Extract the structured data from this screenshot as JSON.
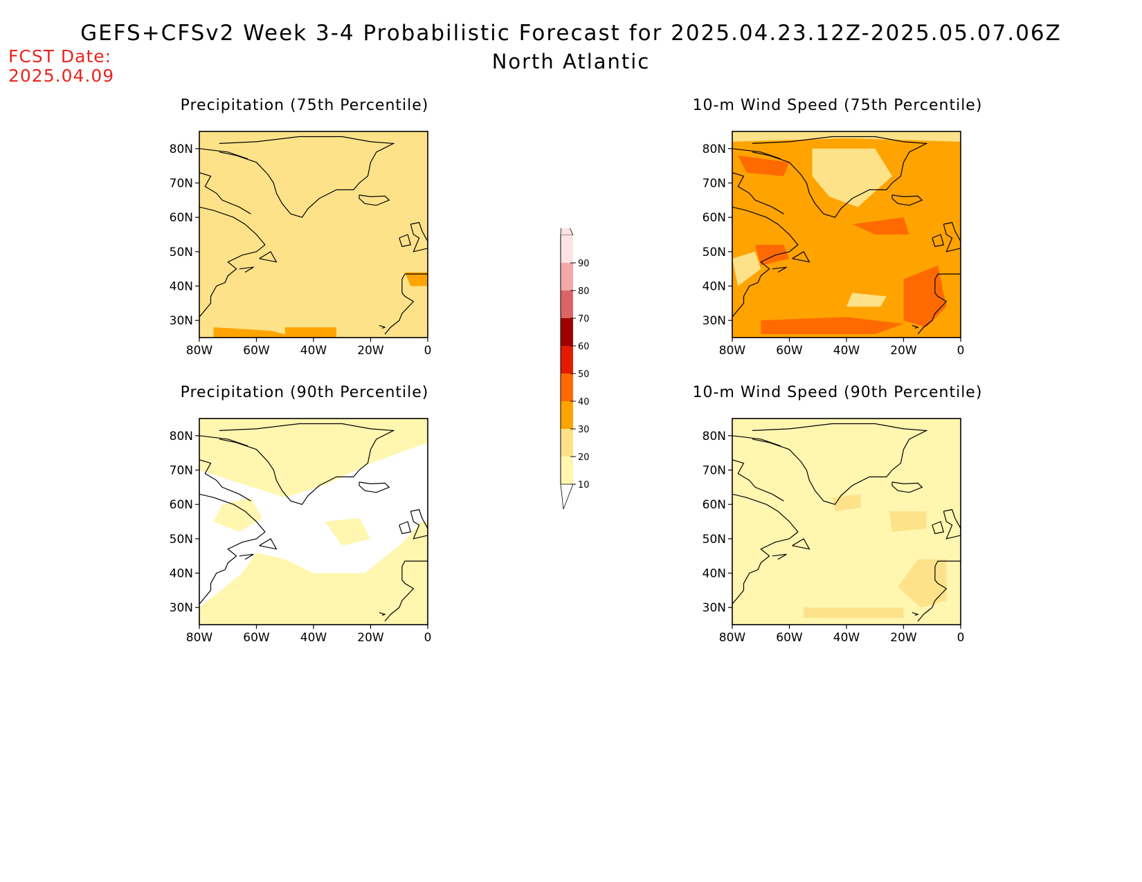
{
  "header": {
    "title": "GEFS+CFSv2 Week 3-4 Probabilistic Forecast for 2025.04.23.12Z-2025.05.07.06Z",
    "subtitle": "North Atlantic",
    "fcst_label": "FCST Date:",
    "fcst_date": "2025.04.09"
  },
  "axes": {
    "lat_labels": [
      "80N",
      "70N",
      "60N",
      "50N",
      "40N",
      "30N"
    ],
    "lon_labels": [
      "80W",
      "60W",
      "40W",
      "20W",
      "0"
    ]
  },
  "panels": [
    {
      "id": "precip-75",
      "title": "Precipitation (75th Percentile)",
      "base_color": "#fde28a",
      "pattern": "precip75"
    },
    {
      "id": "wind-75",
      "title": "10-m Wind Speed (75th Percentile)",
      "base_color": "#ffa300",
      "pattern": "wind75"
    },
    {
      "id": "precip-90",
      "title": "Precipitation (90th Percentile)",
      "base_color": "#ffffff",
      "pattern": "precip90"
    },
    {
      "id": "wind-90",
      "title": "10-m Wind Speed (90th Percentile)",
      "base_color": "#fff6b0",
      "pattern": "wind90"
    }
  ],
  "colorbar": {
    "levels": [
      "10",
      "20",
      "30",
      "40",
      "50",
      "60",
      "70",
      "80",
      "90"
    ],
    "colors": [
      "#fff6b0",
      "#fde28a",
      "#ffa300",
      "#ff6a00",
      "#e21a00",
      "#a00000",
      "#dd6464",
      "#f5a8a8",
      "#fde3e3"
    ]
  },
  "chart_data": {
    "type": "heatmap",
    "title": "GEFS+CFSv2 Week 3-4 Probabilistic Forecast for 2025.04.23.12Z-2025.05.07.06Z",
    "subtitle": "North Atlantic",
    "x_range": [
      "80W",
      "0"
    ],
    "y_range": [
      "25N",
      "85N"
    ],
    "legend_levels": [
      10,
      20,
      30,
      40,
      50,
      60,
      70,
      80,
      90
    ],
    "series": [
      {
        "name": "Precipitation (75th Percentile)",
        "dominant_range": [
          20,
          30
        ]
      },
      {
        "name": "10-m Wind Speed (75th Percentile)",
        "dominant_range": [
          30,
          40
        ]
      },
      {
        "name": "Precipitation (90th Percentile)",
        "dominant_range": [
          0,
          20
        ]
      },
      {
        "name": "10-m Wind Speed (90th Percentile)",
        "dominant_range": [
          10,
          20
        ]
      }
    ]
  }
}
